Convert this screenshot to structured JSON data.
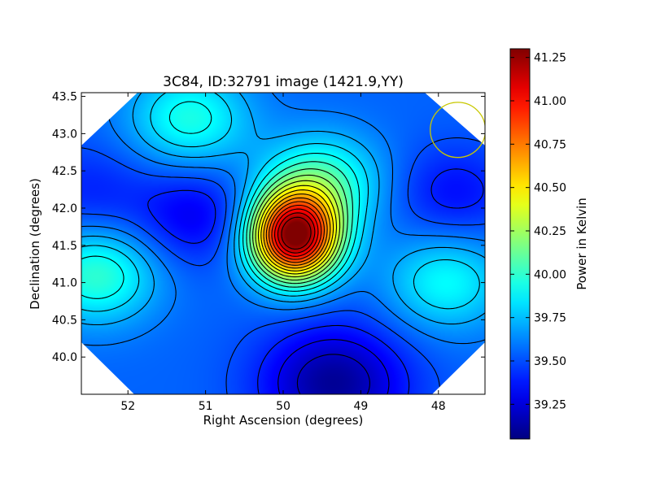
{
  "chart_data": {
    "type": "heatmap",
    "title": "3C84, ID:32791 image (1421.9,YY)",
    "xlabel": "Right Ascension (degrees)",
    "ylabel": "Declination (degrees)",
    "xlim": [
      52.6,
      47.4
    ],
    "ylim": [
      39.5,
      43.55
    ],
    "x_ticks": [
      "52",
      "51",
      "50",
      "49",
      "48"
    ],
    "x_tick_values": [
      52,
      51,
      50,
      49,
      48
    ],
    "y_ticks": [
      "40.0",
      "40.5",
      "41.0",
      "41.5",
      "42.0",
      "42.5",
      "43.0",
      "43.5"
    ],
    "y_tick_values": [
      40.0,
      40.5,
      41.0,
      41.5,
      42.0,
      42.5,
      43.0,
      43.5
    ],
    "colorbar": {
      "label": "Power in Kelvin",
      "range": [
        39.05,
        41.3
      ],
      "ticks": [
        "39.25",
        "39.50",
        "39.75",
        "40.00",
        "40.25",
        "40.50",
        "40.75",
        "41.00",
        "41.25"
      ],
      "tick_values": [
        39.25,
        39.5,
        39.75,
        40.0,
        40.25,
        40.5,
        40.75,
        41.0,
        41.25
      ],
      "colormap": "jet"
    },
    "features": [
      {
        "kind": "peak",
        "ra": 49.85,
        "dec": 41.62,
        "value": 41.3
      },
      {
        "kind": "peak",
        "ra": 49.5,
        "dec": 42.35,
        "value": 40.0
      },
      {
        "kind": "peak",
        "ra": 52.4,
        "dec": 41.1,
        "value": 40.0
      },
      {
        "kind": "peak",
        "ra": 51.2,
        "dec": 43.2,
        "value": 39.95
      },
      {
        "kind": "peak",
        "ra": 47.9,
        "dec": 41.0,
        "value": 39.9
      },
      {
        "kind": "minimum",
        "ra": 51.15,
        "dec": 41.9,
        "value": 39.3
      },
      {
        "kind": "minimum",
        "ra": 49.35,
        "dec": 39.65,
        "value": 39.1
      },
      {
        "kind": "minimum",
        "ra": 52.5,
        "dec": 42.2,
        "value": 39.4
      },
      {
        "kind": "minimum",
        "ra": 47.8,
        "dec": 42.2,
        "value": 39.35
      }
    ],
    "beam": {
      "ra": 47.75,
      "dec": 43.05,
      "radius_deg": 0.37,
      "color": "#c8c800"
    },
    "legend": "none",
    "grid": false
  }
}
